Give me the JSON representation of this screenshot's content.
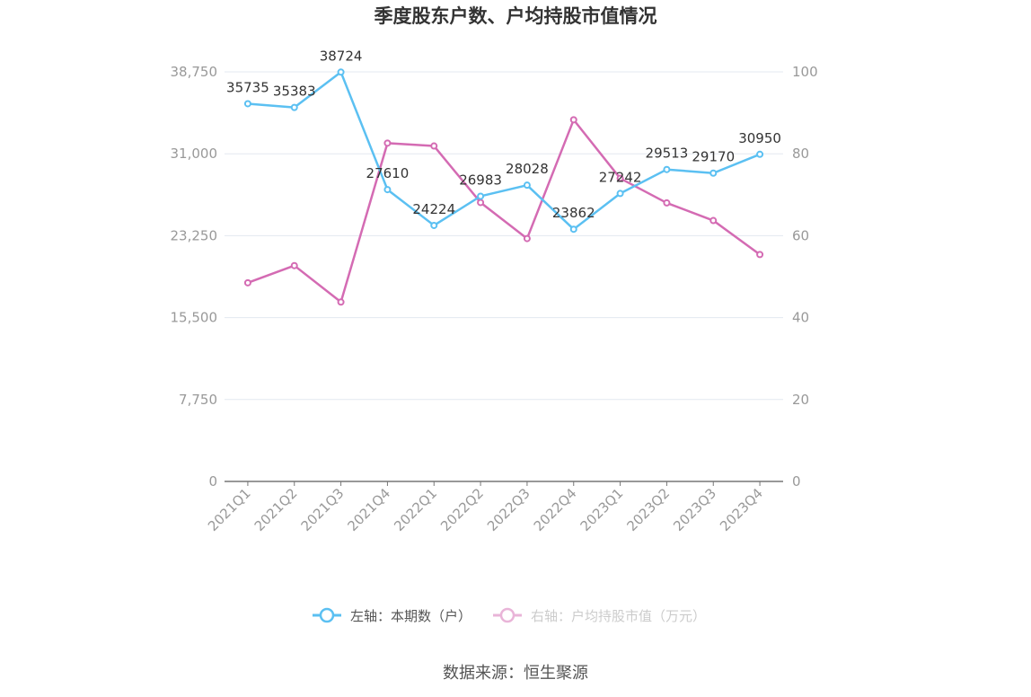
{
  "chart_data": {
    "type": "line",
    "title": "季度股东户数、户均持股市值情况",
    "categories": [
      "2021Q1",
      "2021Q2",
      "2021Q3",
      "2021Q4",
      "2022Q1",
      "2022Q2",
      "2022Q3",
      "2022Q4",
      "2023Q1",
      "2023Q2",
      "2023Q3",
      "2023Q4"
    ],
    "left_axis": {
      "ticks": [
        "0",
        "7,750",
        "15,500",
        "23,250",
        "31,000",
        "38,750"
      ],
      "ylim": [
        0,
        38750
      ]
    },
    "right_axis": {
      "ticks": [
        "0",
        "20",
        "40",
        "60",
        "80",
        "100"
      ],
      "ylim": [
        0,
        100
      ]
    },
    "series": [
      {
        "name": "左轴：本期数（户）",
        "axis": "left",
        "color": "#5bc0f2",
        "values": [
          35735,
          35383,
          38724,
          27610,
          24224,
          26983,
          28028,
          23862,
          27242,
          29513,
          29170,
          30950
        ],
        "labels": [
          "35735",
          "35383",
          "38724",
          "27610",
          "24224",
          "26983",
          "28028",
          "23862",
          "27242",
          "29513",
          "29170",
          "30950"
        ]
      },
      {
        "name": "右轴：户均持股市值（万元）",
        "axis": "right",
        "color": "#d46bb3",
        "values": [
          48.5,
          52.7,
          43.8,
          82.6,
          81.9,
          68.1,
          59.3,
          88.3,
          74.0,
          68.0,
          63.7,
          55.4
        ]
      }
    ],
    "grid": true,
    "legend_position": "bottom"
  },
  "source": "数据来源：恒生聚源"
}
